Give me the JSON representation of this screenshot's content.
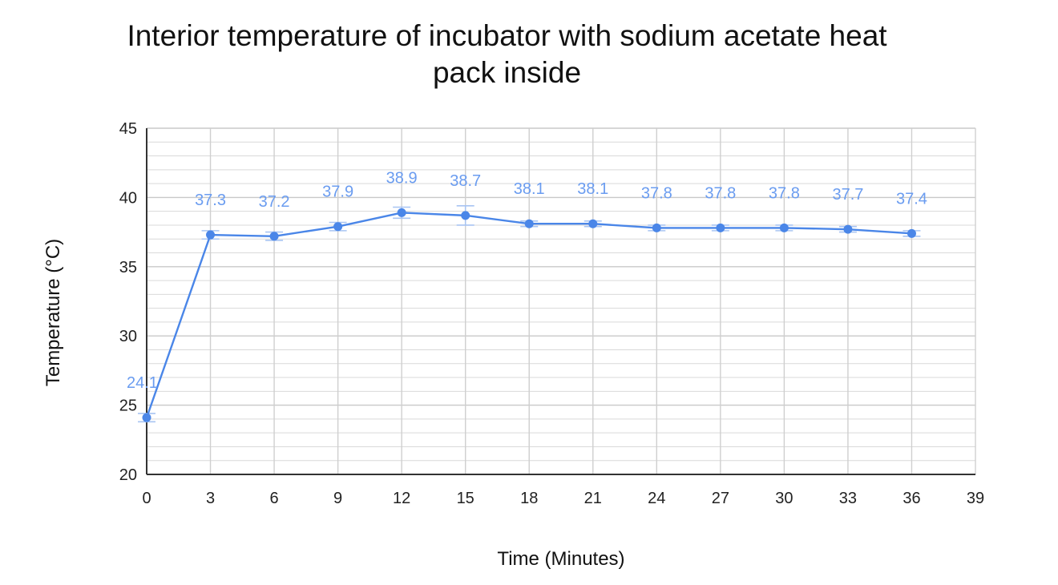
{
  "chart_data": {
    "type": "line",
    "title_lines": [
      "Interior temperature of incubator with sodium acetate heat",
      "pack inside"
    ],
    "xlabel": "Time (Minutes)",
    "ylabel": "Temperature (°C)",
    "xlim": [
      0,
      39
    ],
    "ylim": [
      20,
      45
    ],
    "x_ticks": [
      0,
      3,
      6,
      9,
      12,
      15,
      18,
      21,
      24,
      27,
      30,
      33,
      36,
      39
    ],
    "y_ticks": [
      20,
      25,
      30,
      35,
      40,
      45
    ],
    "grid": true,
    "legend": "none",
    "series": [
      {
        "x": [
          0,
          3,
          6,
          9,
          12,
          15,
          18,
          21,
          24,
          27,
          30,
          33,
          36
        ],
        "y": [
          24.1,
          37.3,
          37.2,
          37.9,
          38.9,
          38.7,
          38.1,
          38.1,
          37.8,
          37.8,
          37.8,
          37.7,
          37.4
        ],
        "data_labels": [
          "24.1",
          "37.3",
          "37.2",
          "37.9",
          "38.9",
          "38.7",
          "38.1",
          "38.1",
          "37.8",
          "37.8",
          "37.8",
          "37.7",
          "37.4"
        ],
        "error": [
          0.3,
          0.3,
          0.3,
          0.3,
          0.4,
          0.7,
          0.2,
          0.2,
          0.2,
          0.2,
          0.2,
          0.2,
          0.2
        ],
        "color": "#4a86e8"
      }
    ],
    "colors": {
      "line": "#4a86e8",
      "error_bar": "#a8c4f2",
      "data_label": "#6a9cf0",
      "grid": "#d9d9d9",
      "axis": "#333333"
    }
  }
}
